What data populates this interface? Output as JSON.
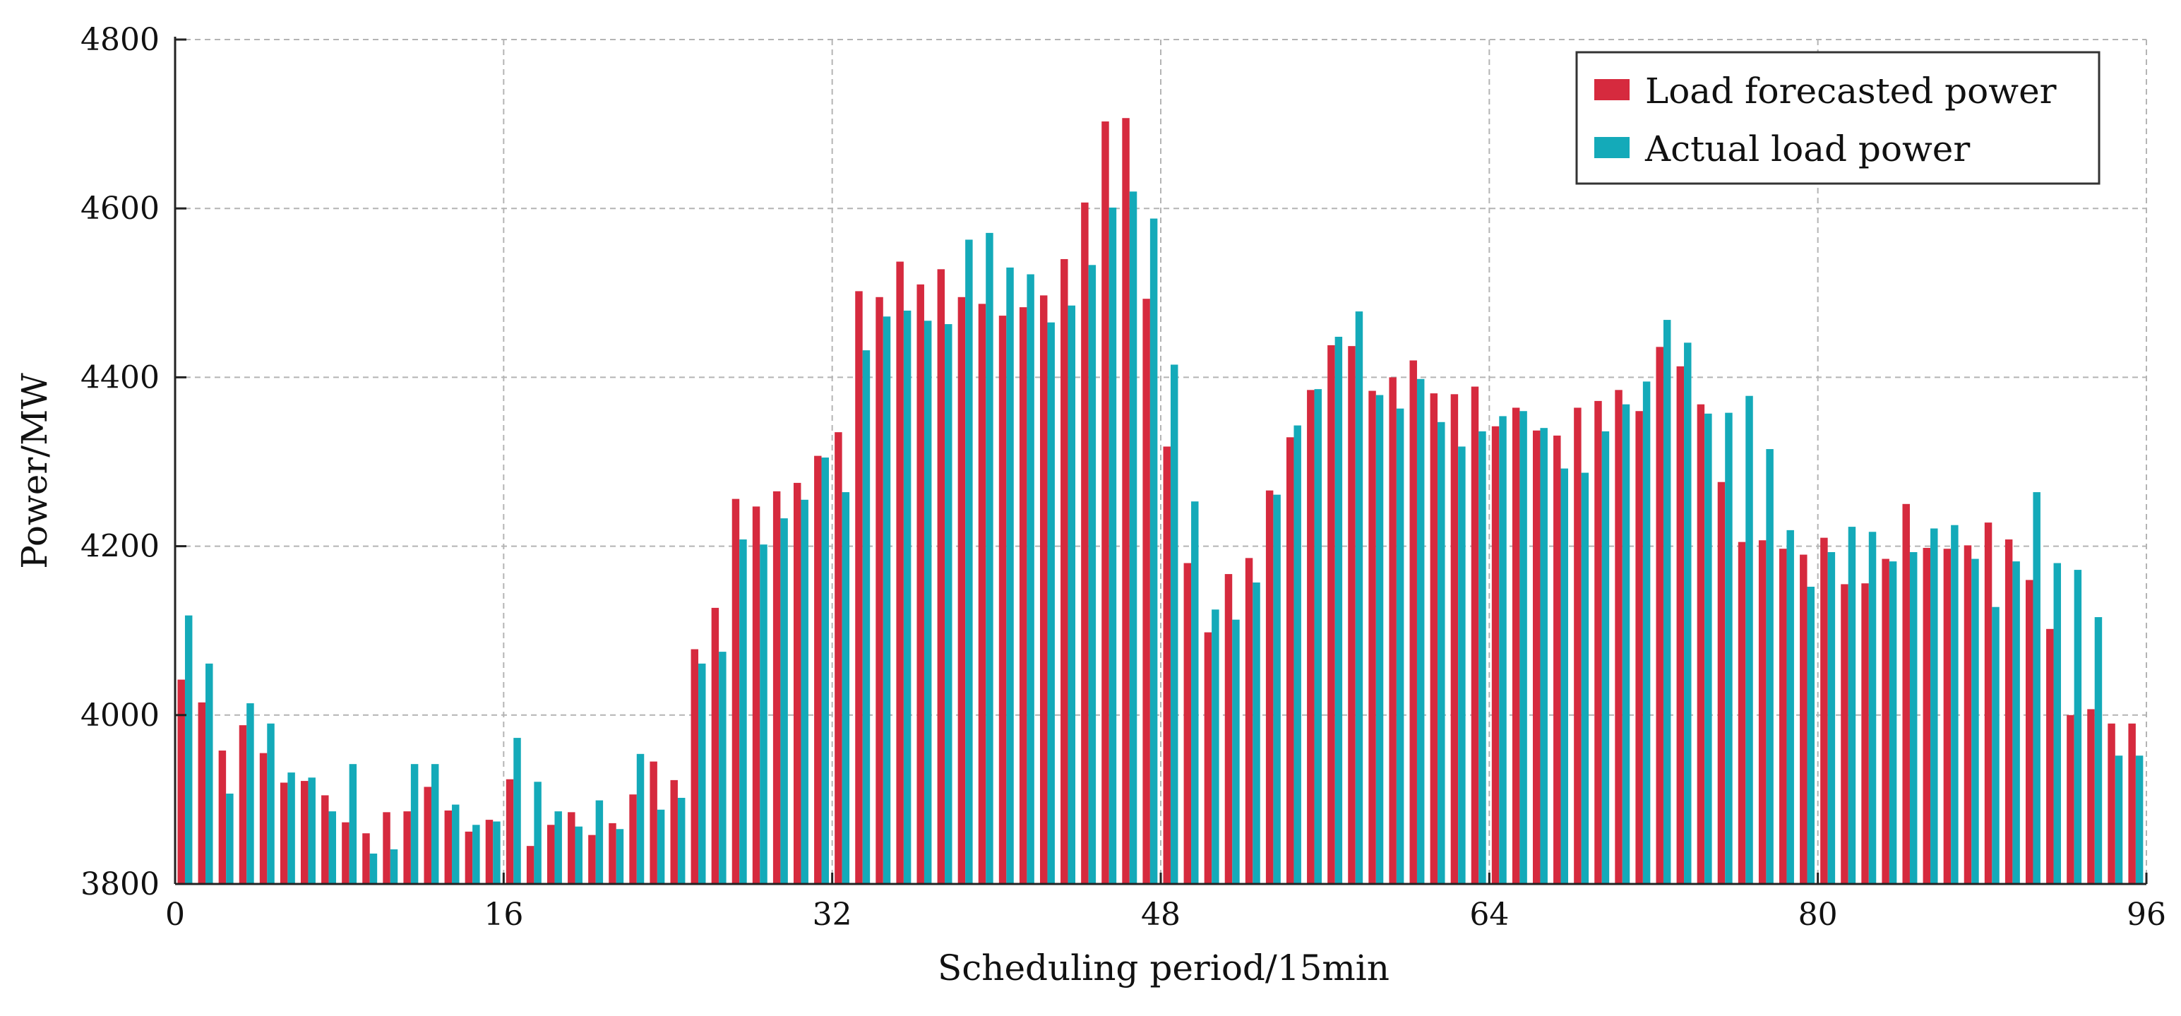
{
  "chart_data": {
    "type": "bar",
    "title": "",
    "xlabel": "Scheduling period/15min",
    "ylabel": "Power/MW",
    "xlim": [
      0,
      96
    ],
    "ylim": [
      3800,
      4800
    ],
    "x_ticks": [
      0,
      16,
      32,
      48,
      64,
      80,
      96
    ],
    "y_ticks": [
      3800,
      4000,
      4200,
      4400,
      4600,
      4800
    ],
    "x_tick_labels": [
      "0",
      "16",
      "32",
      "48",
      "64",
      "80",
      "96"
    ],
    "y_tick_labels": [
      "3800",
      "4000",
      "4200",
      "4400",
      "4600",
      "4800"
    ],
    "grid": true,
    "legend_position": "top-right",
    "categories": [
      1,
      2,
      3,
      4,
      5,
      6,
      7,
      8,
      9,
      10,
      11,
      12,
      13,
      14,
      15,
      16,
      17,
      18,
      19,
      20,
      21,
      22,
      23,
      24,
      25,
      26,
      27,
      28,
      29,
      30,
      31,
      32,
      33,
      34,
      35,
      36,
      37,
      38,
      39,
      40,
      41,
      42,
      43,
      44,
      45,
      46,
      47,
      48,
      49,
      50,
      51,
      52,
      53,
      54,
      55,
      56,
      57,
      58,
      59,
      60,
      61,
      62,
      63,
      64,
      65,
      66,
      67,
      68,
      69,
      70,
      71,
      72,
      73,
      74,
      75,
      76,
      77,
      78,
      79,
      80,
      81,
      82,
      83,
      84,
      85,
      86,
      87,
      88,
      89,
      90,
      91,
      92,
      93,
      94,
      95,
      96
    ],
    "series": [
      {
        "name": "Load forecasted power",
        "color": "#d62a3e",
        "values": [
          4042,
          4015,
          3958,
          3988,
          3955,
          3920,
          3922,
          3905,
          3873,
          3860,
          3885,
          3886,
          3915,
          3887,
          3862,
          3876,
          3924,
          3845,
          3870,
          3885,
          3858,
          3872,
          3906,
          3945,
          3923,
          4078,
          4127,
          4256,
          4247,
          4265,
          4275,
          4307,
          4335,
          4502,
          4495,
          4537,
          4510,
          4528,
          4495,
          4487,
          4473,
          4483,
          4497,
          4540,
          4607,
          4703,
          4707,
          4493,
          4318,
          4180,
          4098,
          4167,
          4186,
          4266,
          4329,
          4385,
          4438,
          4437,
          4384,
          4400,
          4420,
          4381,
          4380,
          4389,
          4342,
          4364,
          4337,
          4331,
          4364,
          4372,
          4385,
          4360,
          4436,
          4413,
          4368,
          4276,
          4205,
          4207,
          4197,
          4190,
          4210,
          4155,
          4156,
          4185,
          4250,
          4198,
          4197,
          4201,
          4228,
          4208,
          4160,
          4102,
          4000,
          4007,
          3990,
          3990
        ]
      },
      {
        "name": "Actual load power",
        "color": "#14aab9",
        "values": [
          4118,
          4061,
          3907,
          4014,
          3990,
          3932,
          3926,
          3886,
          3942,
          3836,
          3841,
          3942,
          3942,
          3894,
          3870,
          3874,
          3973,
          3921,
          3886,
          3868,
          3899,
          3865,
          3954,
          3888,
          3902,
          4061,
          4075,
          4208,
          4202,
          4233,
          4255,
          4305,
          4264,
          4432,
          4472,
          4479,
          4467,
          4463,
          4563,
          4571,
          4530,
          4522,
          4465,
          4485,
          4533,
          4601,
          4620,
          4588,
          4415,
          4253,
          4125,
          4113,
          4157,
          4261,
          4343,
          4386,
          4448,
          4478,
          4379,
          4363,
          4398,
          4347,
          4318,
          4336,
          4354,
          4360,
          4340,
          4292,
          4287,
          4336,
          4368,
          4395,
          4468,
          4441,
          4357,
          4358,
          4378,
          4315,
          4219,
          4152,
          4193,
          4223,
          4217,
          4182,
          4193,
          4221,
          4225,
          4185,
          4128,
          4182,
          4264,
          4180,
          4172,
          4116,
          3952,
          3952
        ]
      }
    ]
  }
}
